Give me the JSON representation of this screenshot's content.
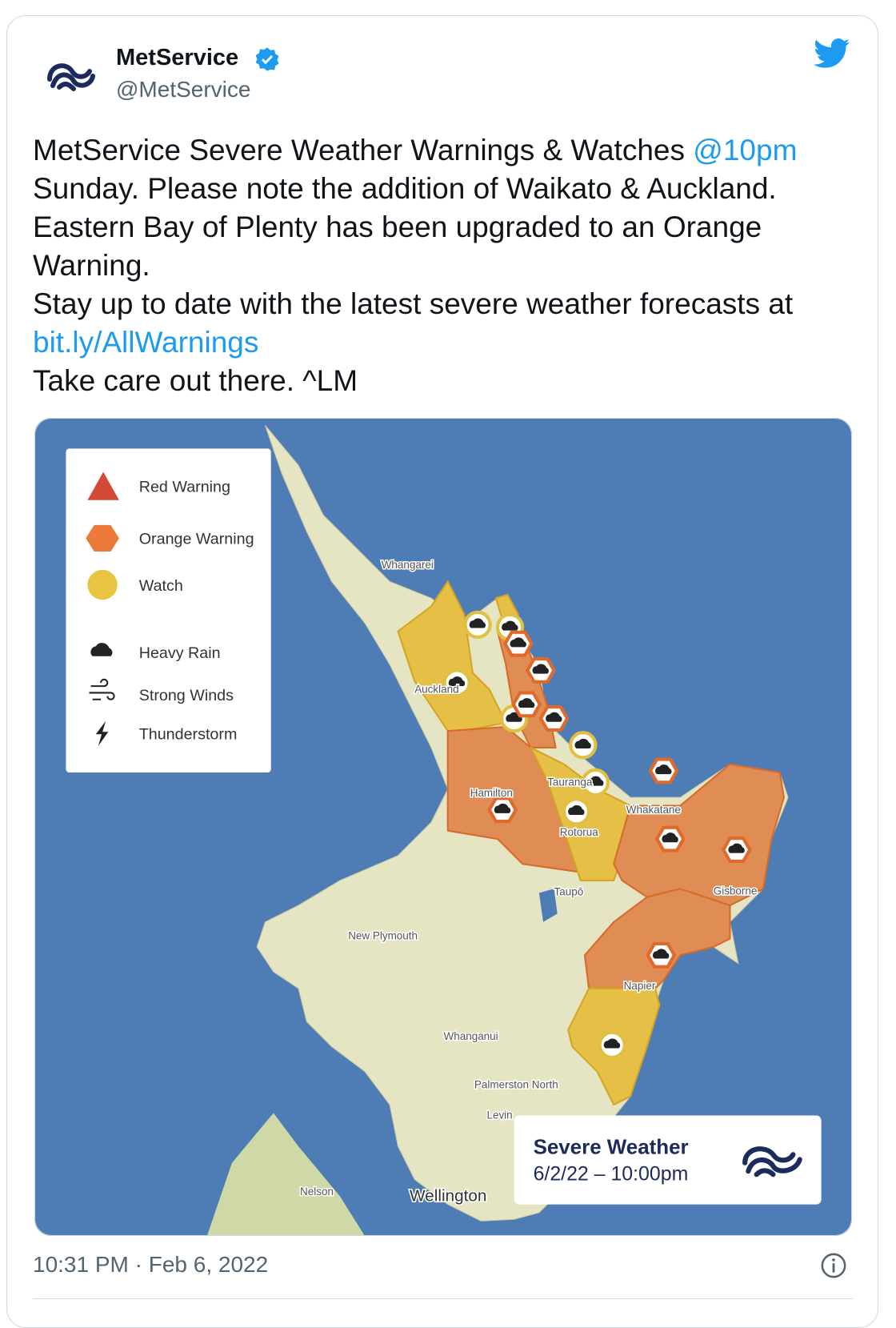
{
  "tweet": {
    "author": {
      "name": "MetService",
      "handle": "@MetService"
    },
    "text": [
      {
        "segments": [
          {
            "text": "MetService Severe Weather Warnings & Watches "
          },
          {
            "text": "@10pm",
            "link": true
          },
          {
            "text": " Sunday. Please note the addition of Waikato & Auckland. Eastern Bay of Plenty has been upgraded to an Orange Warning."
          }
        ]
      },
      {
        "segments": [
          {
            "text": "Stay up to date with the latest severe weather forecasts at "
          },
          {
            "text": "bit.ly/AllWarnings",
            "link": true
          }
        ]
      },
      {
        "segments": [
          {
            "text": "Take care out there. ^LM"
          }
        ]
      }
    ],
    "timestamp": "10:31 PM · Feb 6, 2022"
  },
  "map": {
    "legend": [
      "Red Warning",
      "Orange Warning",
      "Watch",
      "Heavy Rain",
      "Strong Winds",
      "Thunderstorm"
    ],
    "places": [
      "Whangarei",
      "Auckland",
      "Hamilton",
      "Tauranga",
      "Rotorua",
      "Whakatane",
      "Taupō",
      "Gisborne",
      "New Plymouth",
      "Napier",
      "Whanganui",
      "Palmerston North",
      "Levin",
      "Nelson",
      "Wellington"
    ],
    "badge": {
      "title": "Severe Weather",
      "date": "6/2/22 – 10:00pm"
    }
  }
}
